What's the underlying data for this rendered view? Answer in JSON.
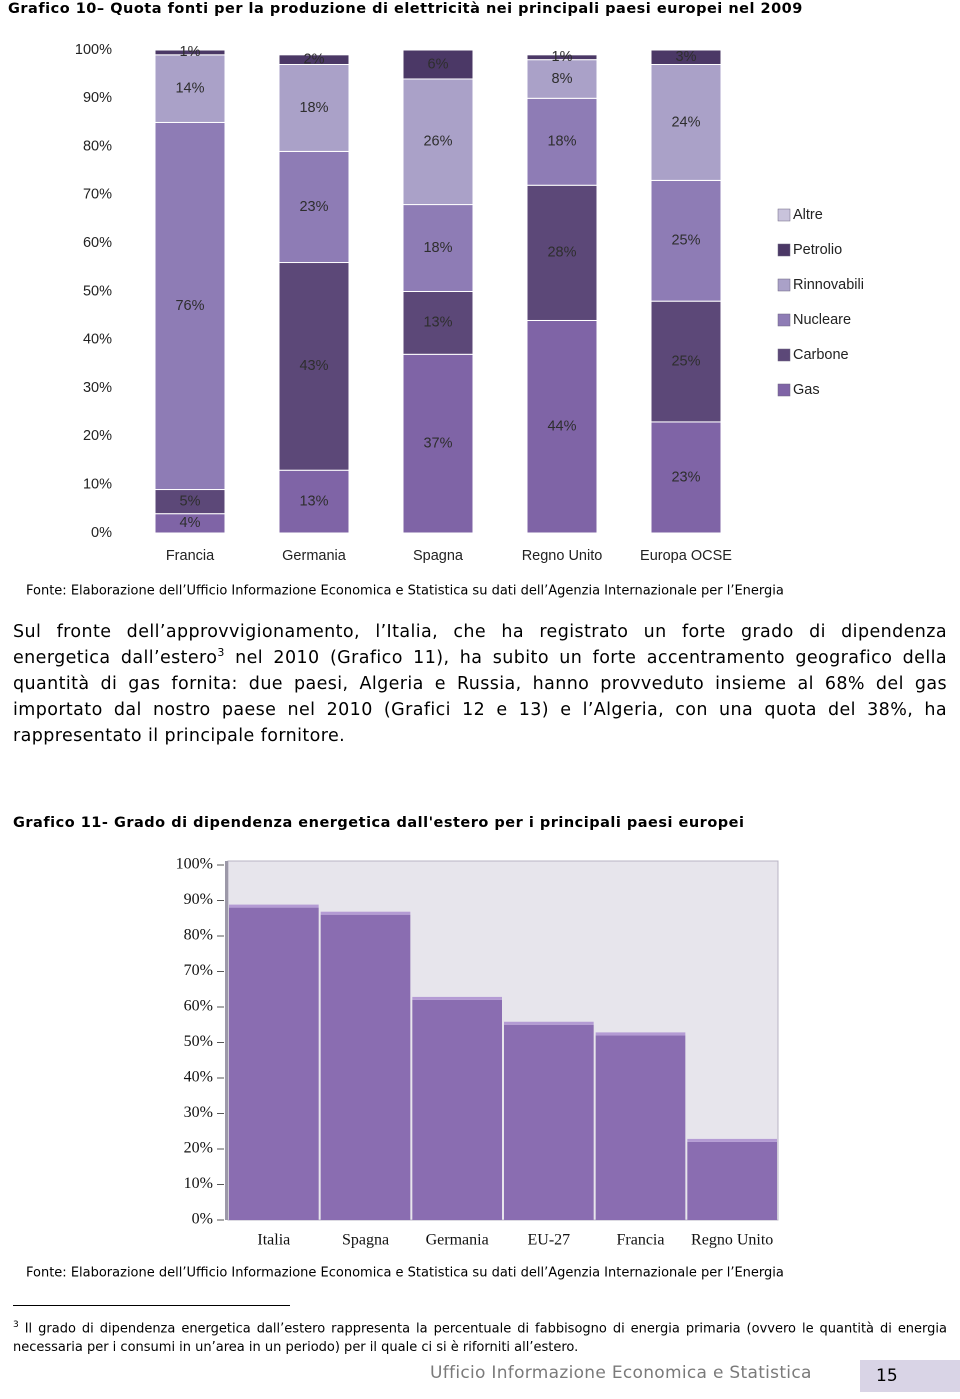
{
  "chart_data": [
    {
      "type": "stacked_bar",
      "title": "Grafico 10– Quota fonti per la produzione di elettricità nei principali paesi europei nel 2009",
      "categories": [
        "Francia",
        "Germania",
        "Spagna",
        "Regno Unito",
        "Europa OCSE"
      ],
      "series": [
        {
          "name": "Gas",
          "color": "#7f64a6",
          "values": [
            4,
            13,
            37,
            44,
            23
          ],
          "value_labels": [
            "4%",
            "13%",
            "37%",
            "44%",
            "23%"
          ]
        },
        {
          "name": "Carbone",
          "color": "#5c4878",
          "values": [
            5,
            43,
            13,
            28,
            25
          ],
          "value_labels": [
            "5%",
            "43%",
            "13%",
            "28%",
            "25%"
          ]
        },
        {
          "name": "Nucleare",
          "color": "#8e7cb5",
          "values": [
            76,
            23,
            18,
            18,
            25
          ],
          "value_labels": [
            "76%",
            "23%",
            "18%",
            "18%",
            "25%"
          ]
        },
        {
          "name": "Rinnovabili",
          "color": "#aaa1c8",
          "values": [
            14,
            18,
            26,
            8,
            24
          ],
          "value_labels": [
            "14%",
            "18%",
            "26%",
            "8%",
            "24%"
          ]
        },
        {
          "name": "Petrolio",
          "color": "#4b3866",
          "values": [
            1,
            2,
            6,
            1,
            3
          ],
          "value_labels": [
            "1%",
            "2%",
            "6%",
            "1%",
            "3%"
          ]
        },
        {
          "name": "Altre",
          "color": "#c9c3dc",
          "values": [
            0,
            0,
            0,
            0,
            0
          ]
        }
      ],
      "ylim": [
        0,
        100
      ],
      "yticks": [
        {
          "value": 0,
          "label": "0%"
        },
        {
          "value": 10,
          "label": "10%"
        },
        {
          "value": 20,
          "label": "20%"
        },
        {
          "value": 30,
          "label": "30%"
        },
        {
          "value": 40,
          "label": "40%"
        },
        {
          "value": 50,
          "label": "50%"
        },
        {
          "value": 60,
          "label": "60%"
        },
        {
          "value": 70,
          "label": "70%"
        },
        {
          "value": 80,
          "label": "80%"
        },
        {
          "value": 90,
          "label": "90%"
        },
        {
          "value": 100,
          "label": "100%"
        }
      ],
      "legend": "right",
      "source": "Fonte: Elaborazione dell’Ufficio Informazione Economica e Statistica su dati dell’Agenzia Internazionale per l’Energia"
    },
    {
      "type": "bar",
      "title": "Grafico 11- Grado di dipendenza energetica dall'estero per i principali paesi europei",
      "categories": [
        "Italia",
        "Spagna",
        "Germania",
        "EU-27",
        "Francia",
        "Regno Unito"
      ],
      "values": [
        88,
        86,
        62,
        55,
        52,
        22
      ],
      "color": "#8a6db1",
      "ylim": [
        0,
        100
      ],
      "yticks": [
        {
          "value": 0,
          "label": "0%"
        },
        {
          "value": 10,
          "label": "10%"
        },
        {
          "value": 20,
          "label": "20%"
        },
        {
          "value": 30,
          "label": "30%"
        },
        {
          "value": 40,
          "label": "40%"
        },
        {
          "value": 50,
          "label": "50%"
        },
        {
          "value": 60,
          "label": "60%"
        },
        {
          "value": 70,
          "label": "70%"
        },
        {
          "value": 80,
          "label": "80%"
        },
        {
          "value": 90,
          "label": "90%"
        },
        {
          "value": 100,
          "label": "100%"
        }
      ],
      "source": "Fonte: Elaborazione dell’Ufficio Informazione Economica e Statistica su dati dell’Agenzia Internazionale per l’Energia"
    }
  ],
  "body": {
    "text_before": "Sul fronte dell’approvvigionamento, l’Italia, che ha registrato un forte grado di dipendenza energetica dall’estero",
    "note_ref": "3",
    "text_after": " nel 2010 (Grafico 11), ha subito un forte accentramento geografico della quantità di gas fornita: due paesi, Algeria e Russia, hanno provveduto insieme al 68% del gas importato dal nostro paese nel 2010 (Grafici 12 e 13) e l’Algeria, con una quota del 38%, ha rappresentato il principale fornitore."
  },
  "footnote": {
    "number": "3",
    "text": "Il grado di dipendenza energetica dall’estero rappresenta la percentuale di fabbisogno di energia primaria (ovvero le quantità di energia necessaria per i consumi in un’area in un periodo) per il quale ci si è riforniti all’estero."
  },
  "footer": {
    "office": "Ufficio Informazione Economica e Statistica",
    "page": "15"
  }
}
